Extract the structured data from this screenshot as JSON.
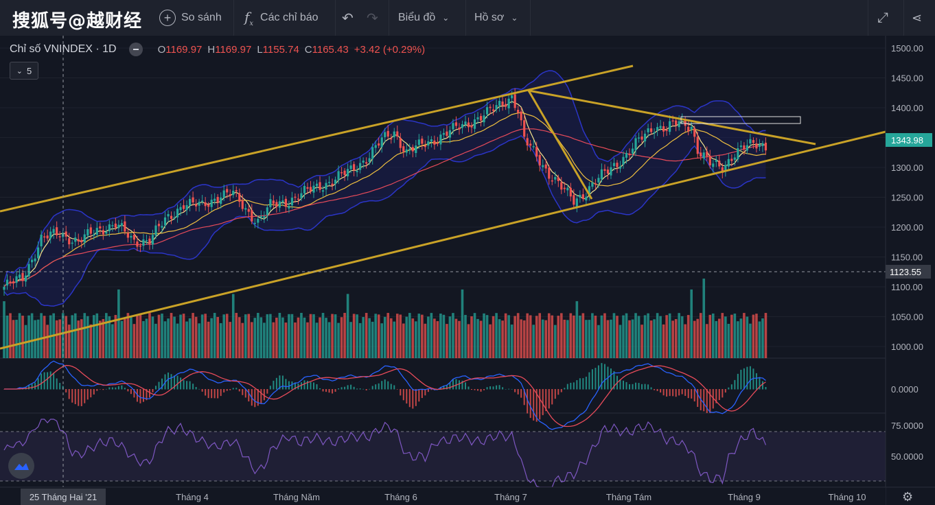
{
  "watermark": "搜狐号@越财经",
  "toolbar": {
    "compare": "So sánh",
    "indicators": "Các chỉ báo",
    "chart_type": "Biểu đồ",
    "profile": "Hồ sơ"
  },
  "legend": {
    "symbol": "Chỉ số VNINDEX · 1D",
    "o_label": "O",
    "o": "1169.97",
    "h_label": "H",
    "h": "1169.97",
    "l_label": "L",
    "l": "1155.74",
    "c_label": "C",
    "c": "1165.43",
    "change": "+3.42 (+0.29%)",
    "indicator_count": "5"
  },
  "colors": {
    "up": "#26a69a",
    "down": "#ef5350",
    "trendline": "#c9a227",
    "bollinger": "#2b35c8",
    "ma_fast": "#f6e58d",
    "ma_slow": "#e84b5a",
    "rsi": "#7e57c2"
  },
  "chart_data": {
    "type": "candlestick",
    "price_axis": [
      "1500.00",
      "1450.00",
      "1400.00",
      "1350.00",
      "1300.00",
      "1250.00",
      "1200.00",
      "1150.00",
      "1100.00",
      "1050.00",
      "1000.00"
    ],
    "last_price_label": "1343.98",
    "crosshair_price_label": "1123.55",
    "crosshair_date_label": "25 Tháng Hai '21",
    "macd_axis": [
      "0.0000"
    ],
    "rsi_axis": [
      "75.0000",
      "50.0000"
    ],
    "x_labels": [
      "Tháng 4",
      "Tháng Năm",
      "Tháng 6",
      "Tháng 7",
      "Tháng Tám",
      "Tháng 9",
      "Tháng 10"
    ],
    "anchors": [
      [
        0,
        1100
      ],
      [
        6,
        1115
      ],
      [
        12,
        1180
      ],
      [
        18,
        1190
      ],
      [
        24,
        1175
      ],
      [
        30,
        1195
      ],
      [
        36,
        1205
      ],
      [
        42,
        1175
      ],
      [
        47,
        1180
      ],
      [
        52,
        1210
      ],
      [
        58,
        1240
      ],
      [
        64,
        1235
      ],
      [
        70,
        1255
      ],
      [
        74,
        1255
      ],
      [
        78,
        1230
      ],
      [
        82,
        1210
      ],
      [
        86,
        1235
      ],
      [
        92,
        1245
      ],
      [
        100,
        1265
      ],
      [
        106,
        1278
      ],
      [
        112,
        1295
      ],
      [
        118,
        1320
      ],
      [
        122,
        1345
      ],
      [
        126,
        1360
      ],
      [
        130,
        1325
      ],
      [
        136,
        1340
      ],
      [
        142,
        1355
      ],
      [
        148,
        1370
      ],
      [
        156,
        1390
      ],
      [
        162,
        1412
      ],
      [
        164,
        1420
      ],
      [
        166,
        1395
      ],
      [
        168,
        1345
      ],
      [
        172,
        1320
      ],
      [
        176,
        1290
      ],
      [
        180,
        1265
      ],
      [
        184,
        1245
      ],
      [
        188,
        1260
      ],
      [
        192,
        1280
      ],
      [
        196,
        1300
      ],
      [
        202,
        1325
      ],
      [
        206,
        1350
      ],
      [
        210,
        1370
      ],
      [
        214,
        1365
      ],
      [
        218,
        1375
      ],
      [
        222,
        1370
      ],
      [
        224,
        1330
      ],
      [
        228,
        1305
      ],
      [
        232,
        1300
      ],
      [
        236,
        1325
      ],
      [
        240,
        1335
      ],
      [
        244,
        1340
      ],
      [
        246,
        1336
      ]
    ],
    "candles_total": 247
  }
}
